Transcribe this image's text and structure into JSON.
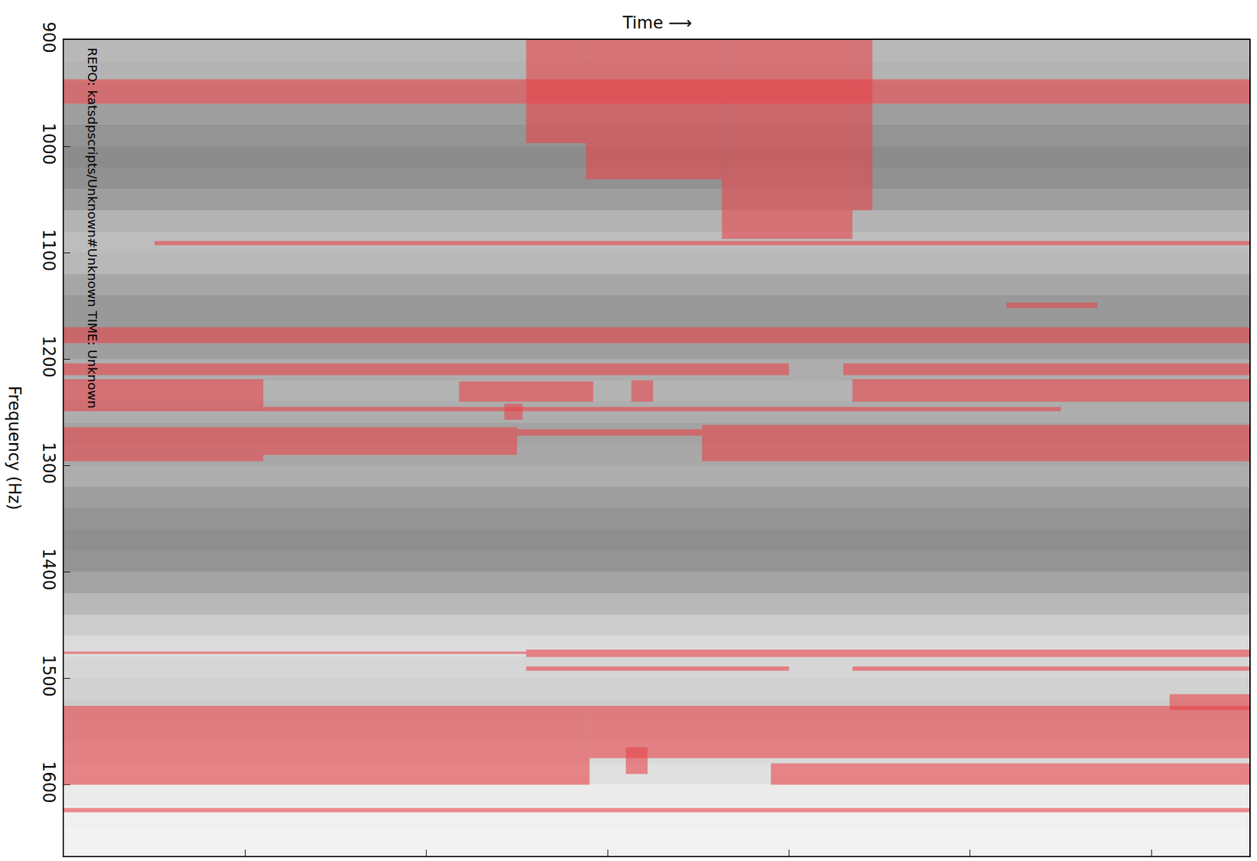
{
  "chart_data": {
    "type": "heatmap",
    "xlabel": "Time ⟶",
    "ylabel": "Frequency (Hz)",
    "annotations": [
      "REPO: katsdpscripts/Unknown#Unknown TIME: Unknown"
    ],
    "xlim": [
      0,
      6.54
    ],
    "xticks": [
      1,
      2,
      3,
      4,
      5,
      6
    ],
    "ylim": [
      1667,
      900
    ],
    "yticks": [
      900,
      1000,
      1100,
      1200,
      1300,
      1400,
      1500,
      1600
    ],
    "tick_labels": "y",
    "time_edges": [
      0,
      6.54
    ],
    "frequency_edges": [
      900,
      920,
      940,
      960,
      980,
      1000,
      1020,
      1040,
      1060,
      1080,
      1100,
      1120,
      1140,
      1160,
      1180,
      1200,
      1220,
      1240,
      1260,
      1280,
      1300,
      1320,
      1340,
      1360,
      1380,
      1400,
      1420,
      1440,
      1460,
      1480,
      1500,
      1520,
      1540,
      1560,
      1580,
      1600,
      1620,
      1640,
      1667
    ],
    "cells": [
      [
        0.72
      ],
      [
        0.7
      ],
      [
        0.68
      ],
      [
        0.62
      ],
      [
        0.58
      ],
      [
        0.55
      ],
      [
        0.57
      ],
      [
        0.62
      ],
      [
        0.7
      ],
      [
        0.74
      ],
      [
        0.72
      ],
      [
        0.65
      ],
      [
        0.6
      ],
      [
        0.6
      ],
      [
        0.62
      ],
      [
        0.68
      ],
      [
        0.7
      ],
      [
        0.68
      ],
      [
        0.64
      ],
      [
        0.66
      ],
      [
        0.68
      ],
      [
        0.62
      ],
      [
        0.58
      ],
      [
        0.56
      ],
      [
        0.58
      ],
      [
        0.64
      ],
      [
        0.72
      ],
      [
        0.8
      ],
      [
        0.86
      ],
      [
        0.84
      ],
      [
        0.82
      ],
      [
        0.8
      ],
      [
        0.82
      ],
      [
        0.85
      ],
      [
        0.88
      ],
      [
        0.92
      ],
      [
        0.94
      ],
      [
        0.95
      ]
    ],
    "color": "#e8454a",
    "flags": [
      {
        "freq": [
          900,
          997
        ],
        "time": [
          2.55,
          2.88
        ]
      },
      {
        "freq": [
          900,
          1031
        ],
        "time": [
          2.88,
          3.63
        ]
      },
      {
        "freq": [
          900,
          1087
        ],
        "time": [
          3.63,
          4.35
        ]
      },
      {
        "freq": [
          900,
          1060
        ],
        "time": [
          4.35,
          4.46
        ]
      },
      {
        "freq": [
          937,
          960
        ],
        "time": [
          0,
          6.54
        ]
      },
      {
        "freq": [
          1089,
          1093
        ],
        "time": [
          0.5,
          6.54
        ]
      },
      {
        "freq": [
          1147,
          1152
        ],
        "time": [
          5.2,
          5.7
        ]
      },
      {
        "freq": [
          1170,
          1185
        ],
        "time": [
          0,
          6.54
        ]
      },
      {
        "freq": [
          1204,
          1215
        ],
        "time": [
          0,
          4.0
        ]
      },
      {
        "freq": [
          1204,
          1215
        ],
        "time": [
          4.3,
          6.54
        ]
      },
      {
        "freq": [
          1219,
          1245
        ],
        "time": [
          0,
          1.1
        ]
      },
      {
        "freq": [
          1221,
          1240
        ],
        "time": [
          2.18,
          2.92
        ]
      },
      {
        "freq": [
          1219,
          1240
        ],
        "time": [
          4.35,
          6.54
        ]
      },
      {
        "freq": [
          1245,
          1249
        ],
        "time": [
          0,
          5.5
        ]
      },
      {
        "freq": [
          1264,
          1290
        ],
        "time": [
          0,
          2.5
        ]
      },
      {
        "freq": [
          1290,
          1296
        ],
        "time": [
          0,
          1.1
        ]
      },
      {
        "freq": [
          1266,
          1272
        ],
        "time": [
          2.5,
          3.52
        ]
      },
      {
        "freq": [
          1262,
          1296
        ],
        "time": [
          3.52,
          6.54
        ]
      },
      {
        "freq": [
          1220,
          1240
        ],
        "time": [
          3.13,
          3.25
        ]
      },
      {
        "freq": [
          1242,
          1257
        ],
        "time": [
          2.43,
          2.53
        ]
      },
      {
        "freq": [
          1475,
          1477
        ],
        "time": [
          0,
          2.55
        ]
      },
      {
        "freq": [
          1473,
          1480
        ],
        "time": [
          2.55,
          6.54
        ]
      },
      {
        "freq": [
          1489,
          1493
        ],
        "time": [
          2.55,
          4.0
        ]
      },
      {
        "freq": [
          1489,
          1493
        ],
        "time": [
          4.35,
          6.54
        ]
      },
      {
        "freq": [
          1515,
          1530
        ],
        "time": [
          6.1,
          6.54
        ]
      },
      {
        "freq": [
          1526,
          1600
        ],
        "time": [
          0,
          2.9
        ]
      },
      {
        "freq": [
          1526,
          1575
        ],
        "time": [
          2.9,
          6.54
        ]
      },
      {
        "freq": [
          1580,
          1600
        ],
        "time": [
          3.9,
          6.54
        ]
      },
      {
        "freq": [
          1565,
          1590
        ],
        "time": [
          3.1,
          3.22
        ]
      },
      {
        "freq": [
          1622,
          1626
        ],
        "time": [
          0,
          6.54
        ]
      }
    ]
  }
}
